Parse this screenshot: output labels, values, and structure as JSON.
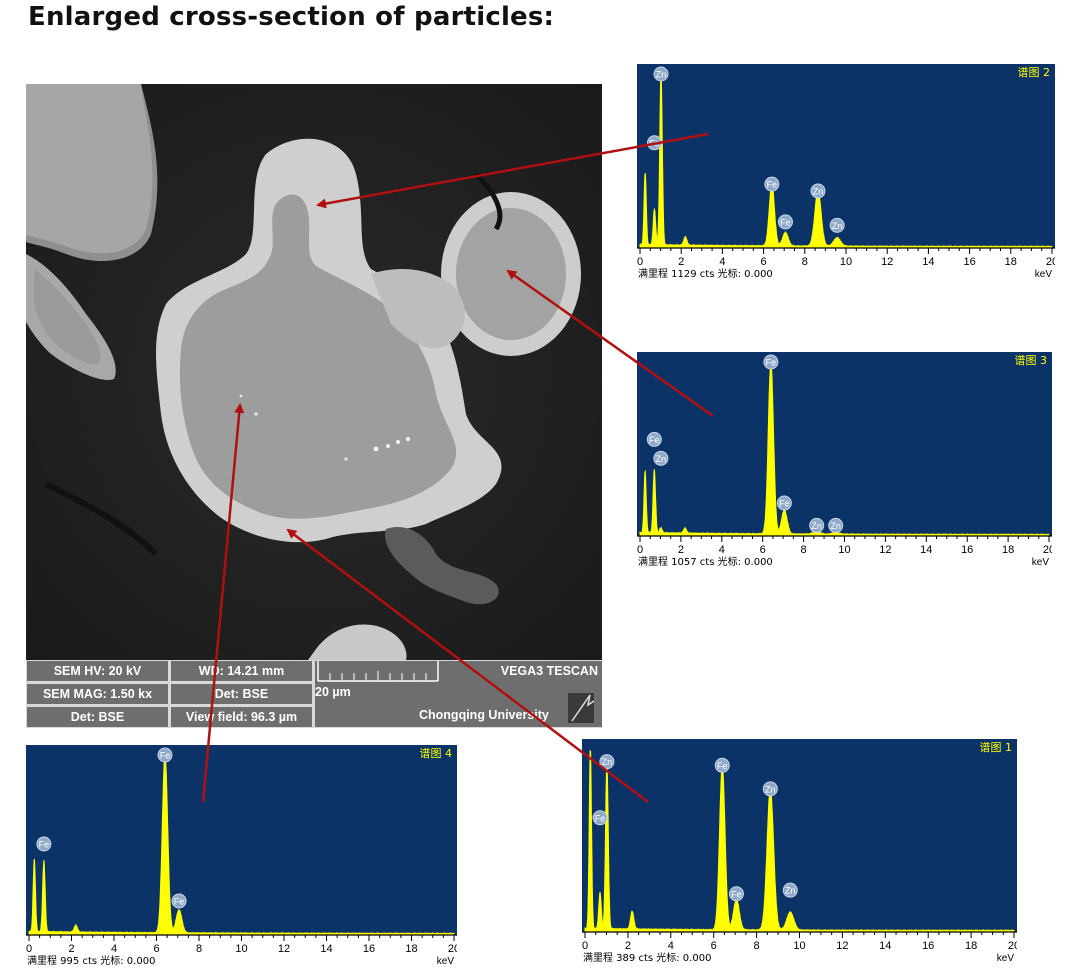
{
  "title": "Enlarged cross-section of particles:",
  "sem_info": {
    "hv": "SEM HV: 20 kV",
    "wd": "WD: 14.21 mm",
    "mag": "SEM MAG: 1.50 kx",
    "det_top": "Det: BSE",
    "det_bottom": "Det: BSE",
    "view_field": "View field: 96.3 µm",
    "scale_label": "20 µm",
    "instrument": "VEGA3 TESCAN",
    "institution": "Chongqing University"
  },
  "colors": {
    "spectrum_bg": "#0b3368",
    "spectrum_line": "#ffff00",
    "arrow": "#b01010",
    "label_yellow": "#ffff00"
  },
  "spectra": [
    {
      "id": "spectrum-2",
      "title": "谱图 2",
      "footer": "满里程 1129 cts 光标: 0.000",
      "unit": "keV",
      "ticks": [
        "0",
        "2",
        "4",
        "6",
        "8",
        "10",
        "12",
        "14",
        "16",
        "18",
        "20"
      ],
      "xlim": [
        0,
        20
      ],
      "peaks": [
        {
          "e": 0.25,
          "h": 0.42
        },
        {
          "e": 0.7,
          "h": 0.21
        },
        {
          "e": 1.02,
          "h": 1.0
        },
        {
          "e": 2.2,
          "h": 0.05
        },
        {
          "e": 6.4,
          "h": 0.36
        },
        {
          "e": 7.06,
          "h": 0.08
        },
        {
          "e": 8.64,
          "h": 0.32
        },
        {
          "e": 9.57,
          "h": 0.05
        }
      ],
      "labels": [
        {
          "el": "Zn",
          "e": 1.02,
          "h": 1.0
        },
        {
          "el": "Fe",
          "e": 0.7,
          "h": 0.6
        },
        {
          "el": "Fe",
          "e": 6.4,
          "h": 0.36
        },
        {
          "el": "Fe",
          "e": 7.06,
          "h": 0.14
        },
        {
          "el": "Zn",
          "e": 8.64,
          "h": 0.32
        },
        {
          "el": "Zn",
          "e": 9.57,
          "h": 0.12
        }
      ]
    },
    {
      "id": "spectrum-3",
      "title": "谱图 3",
      "footer": "满里程 1057 cts 光标: 0.000",
      "unit": "keV",
      "ticks": [
        "0",
        "2",
        "4",
        "6",
        "8",
        "10",
        "12",
        "14",
        "16",
        "18",
        "20"
      ],
      "xlim": [
        0,
        20
      ],
      "peaks": [
        {
          "e": 0.25,
          "h": 0.36
        },
        {
          "e": 0.7,
          "h": 0.37
        },
        {
          "e": 1.02,
          "h": 0.03
        },
        {
          "e": 2.2,
          "h": 0.03
        },
        {
          "e": 6.4,
          "h": 1.0
        },
        {
          "e": 7.06,
          "h": 0.14
        },
        {
          "e": 8.64,
          "h": 0.02
        },
        {
          "e": 9.57,
          "h": 0.01
        }
      ],
      "labels": [
        {
          "el": "Fe",
          "e": 0.7,
          "h": 0.55
        },
        {
          "el": "Zn",
          "e": 1.02,
          "h": 0.44
        },
        {
          "el": "Fe",
          "e": 6.4,
          "h": 1.0
        },
        {
          "el": "Fe",
          "e": 7.06,
          "h": 0.18
        },
        {
          "el": "Zn",
          "e": 8.64,
          "h": 0.05
        },
        {
          "el": "Zn",
          "e": 9.57,
          "h": 0.05
        }
      ]
    },
    {
      "id": "spectrum-4",
      "title": "谱图 4",
      "footer": "满里程 995 cts 光标: 0.000",
      "unit": "keV",
      "ticks": [
        "0",
        "2",
        "4",
        "6",
        "8",
        "10",
        "12",
        "14",
        "16",
        "18",
        "20"
      ],
      "xlim": [
        0,
        20
      ],
      "peaks": [
        {
          "e": 0.25,
          "h": 0.41
        },
        {
          "e": 0.7,
          "h": 0.4
        },
        {
          "e": 2.2,
          "h": 0.04
        },
        {
          "e": 6.4,
          "h": 1.0
        },
        {
          "e": 7.06,
          "h": 0.13
        }
      ],
      "labels": [
        {
          "el": "Fe",
          "e": 0.7,
          "h": 0.5
        },
        {
          "el": "Fe",
          "e": 6.4,
          "h": 1.0
        },
        {
          "el": "Fe",
          "e": 7.06,
          "h": 0.18
        }
      ]
    },
    {
      "id": "spectrum-1",
      "title": "谱图 1",
      "footer": "满里程 389 cts 光标: 0.000",
      "unit": "keV",
      "ticks": [
        "0",
        "2",
        "4",
        "6",
        "8",
        "10",
        "12",
        "14",
        "16",
        "18",
        "20"
      ],
      "xlim": [
        0,
        20
      ],
      "peaks": [
        {
          "e": 0.25,
          "h": 1.0
        },
        {
          "e": 0.7,
          "h": 0.2
        },
        {
          "e": 1.02,
          "h": 0.93
        },
        {
          "e": 2.2,
          "h": 0.1
        },
        {
          "e": 6.4,
          "h": 0.91
        },
        {
          "e": 7.06,
          "h": 0.17
        },
        {
          "e": 8.64,
          "h": 0.78
        },
        {
          "e": 9.57,
          "h": 0.1
        }
      ],
      "labels": [
        {
          "el": "Zn",
          "e": 1.02,
          "h": 0.93
        },
        {
          "el": "Fe",
          "e": 0.7,
          "h": 0.62
        },
        {
          "el": "Fe",
          "e": 6.4,
          "h": 0.91
        },
        {
          "el": "Fe",
          "e": 7.06,
          "h": 0.2
        },
        {
          "el": "Zn",
          "e": 8.64,
          "h": 0.78
        },
        {
          "el": "Zn",
          "e": 9.57,
          "h": 0.22
        }
      ]
    }
  ]
}
